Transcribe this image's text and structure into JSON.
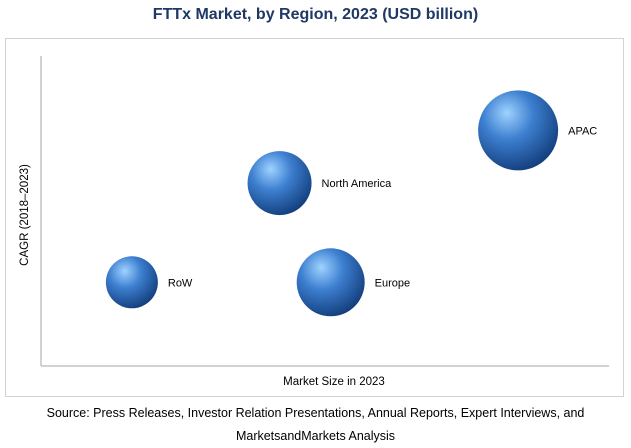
{
  "chart_data": {
    "type": "scatter",
    "title": "FTTx Market, by Region, 2023 (USD billion)",
    "xlabel": "Market Size in 2023",
    "ylabel": "CAGR (2018–2023)",
    "xlim": [
      0,
      10
    ],
    "ylim": [
      0,
      10
    ],
    "grid": false,
    "points": [
      {
        "label": "APAC",
        "x": 8.4,
        "y": 7.6,
        "size": 1.0
      },
      {
        "label": "North America",
        "x": 4.2,
        "y": 5.9,
        "size": 0.8
      },
      {
        "label": "Europe",
        "x": 5.1,
        "y": 2.7,
        "size": 0.85
      },
      {
        "label": "RoW",
        "x": 1.6,
        "y": 2.7,
        "size": 0.65
      }
    ]
  },
  "colors": {
    "title": "#1f3864",
    "bubble_highlight": "#9fd3ff",
    "bubble_mid": "#3d7fd0",
    "bubble_dark": "#14407f"
  },
  "source": "Source: Press Releases, Investor Relation Presentations, Annual Reports, Expert Interviews, and MarketsandMarkets Analysis"
}
